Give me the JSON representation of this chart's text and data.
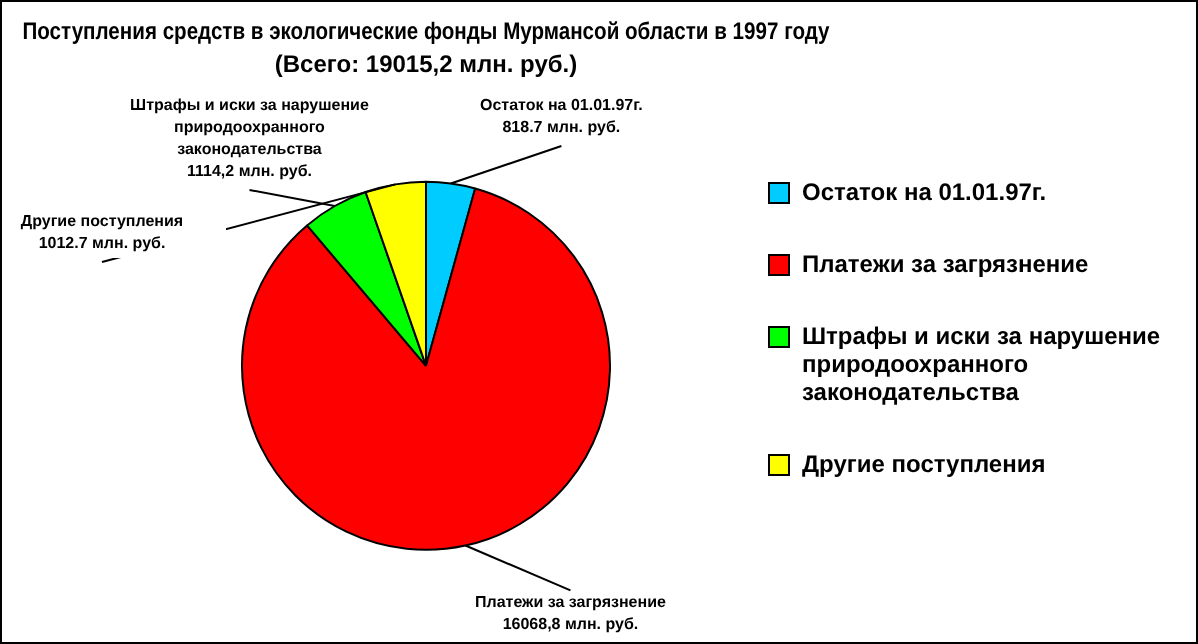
{
  "chart_data": {
    "type": "pie",
    "title": "Поступления средств в экологические фонды Мурмансой области в 1997 году",
    "subtitle": "(Всего: 19015,2 млн. руб.)",
    "categories": [
      "Остаток на 01.01.97г.",
      "Платежи за загрязнение",
      "Штрафы и иски за нарушение природоохранного законодательства",
      "Другие поступления"
    ],
    "values": [
      818.7,
      16068.8,
      1114.2,
      1012.7
    ],
    "colors": [
      "#00ccff",
      "#ff0000",
      "#00ff00",
      "#ffff00"
    ],
    "value_labels": [
      "818.7 млн. руб.",
      "16068,8 млн. руб.",
      "1114,2 млн. руб.",
      "1012.7 млн. руб."
    ],
    "legend": "right"
  }
}
